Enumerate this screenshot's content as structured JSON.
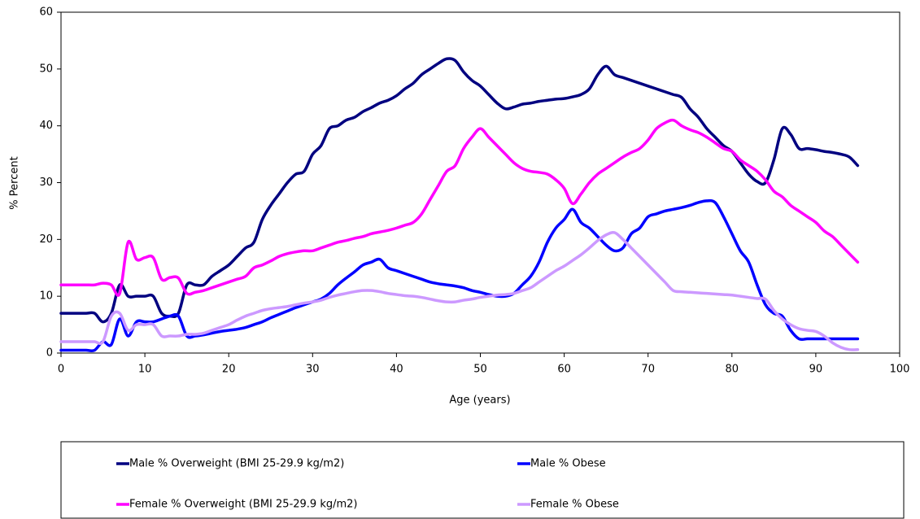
{
  "chart_data": {
    "type": "line",
    "x_label": "Age (years)",
    "y_label": "% Percent",
    "x": [
      0,
      1,
      2,
      3,
      4,
      5,
      6,
      7,
      8,
      9,
      10,
      11,
      12,
      13,
      14,
      15,
      16,
      17,
      18,
      19,
      20,
      21,
      22,
      23,
      24,
      25,
      26,
      27,
      28,
      29,
      30,
      31,
      32,
      33,
      34,
      35,
      36,
      37,
      38,
      39,
      40,
      41,
      42,
      43,
      44,
      45,
      46,
      47,
      48,
      49,
      50,
      51,
      52,
      53,
      54,
      55,
      56,
      57,
      58,
      59,
      60,
      61,
      62,
      63,
      64,
      65,
      66,
      67,
      68,
      69,
      70,
      71,
      72,
      73,
      74,
      75,
      76,
      77,
      78,
      79,
      80,
      81,
      82,
      83,
      84,
      85,
      86,
      87,
      88,
      89,
      90,
      91,
      92,
      93,
      94,
      95
    ],
    "series": [
      {
        "name": "Male % Overweight (BMI 25-29.9 kg/m2)",
        "color": "#000080",
        "values": [
          7,
          7,
          7,
          7,
          7,
          5.5,
          7,
          12,
          10,
          10,
          10,
          10,
          7,
          6.5,
          7,
          12,
          12,
          12,
          13.5,
          14.5,
          15.5,
          17,
          18.5,
          19.5,
          23.5,
          26,
          28,
          30,
          31.5,
          32,
          35,
          36.5,
          39.5,
          40,
          41,
          41.5,
          42.5,
          43.2,
          44,
          44.5,
          45.3,
          46.5,
          47.5,
          49,
          50,
          51,
          51.8,
          51.5,
          49.5,
          48,
          47,
          45.5,
          44,
          43,
          43.3,
          43.8,
          44,
          44.3,
          44.5,
          44.7,
          44.8,
          45.1,
          45.5,
          46.5,
          49,
          50.5,
          49,
          48.5,
          48,
          47.5,
          47,
          46.5,
          46,
          45.5,
          45,
          43,
          41.5,
          39.5,
          38,
          36.5,
          35.5,
          33.5,
          31.5,
          30.2,
          30,
          34,
          39.5,
          38.5,
          36,
          36,
          35.8,
          35.5,
          35.3,
          35,
          34.5,
          33
        ]
      },
      {
        "name": "Male % Obese",
        "color": "#0000ff",
        "values": [
          0.5,
          0.5,
          0.5,
          0.5,
          0.5,
          2,
          1.5,
          6,
          3,
          5.5,
          5.5,
          5.5,
          6,
          6.5,
          6.5,
          3,
          3,
          3.2,
          3.5,
          3.8,
          4,
          4.2,
          4.5,
          5,
          5.5,
          6.2,
          6.8,
          7.4,
          8,
          8.5,
          9,
          9.5,
          10.5,
          12,
          13.2,
          14.3,
          15.5,
          16,
          16.5,
          15,
          14.5,
          14,
          13.5,
          13,
          12.5,
          12.2,
          12,
          11.8,
          11.5,
          11,
          10.7,
          10.3,
          10,
          10,
          10.5,
          12,
          13.5,
          16,
          19.5,
          22,
          23.5,
          25.3,
          23,
          22,
          20.5,
          19,
          18,
          18.5,
          21,
          22,
          24,
          24.5,
          25,
          25.3,
          25.6,
          26,
          26.5,
          26.8,
          26.5,
          24,
          21,
          18,
          16,
          12,
          8.5,
          7,
          6.5,
          4,
          2.5,
          2.5,
          2.5,
          2.5,
          2.5,
          2.5,
          2.5,
          2.5
        ]
      },
      {
        "name": "Female % Overweight (BMI 25-29.9 kg/m2)",
        "color": "#ff00ff",
        "values": [
          12,
          12,
          12,
          12,
          12,
          12.3,
          12,
          10.5,
          19.5,
          16.5,
          16.8,
          16.8,
          13,
          13.3,
          13.2,
          10.5,
          10.7,
          11,
          11.5,
          12,
          12.5,
          13,
          13.5,
          15,
          15.5,
          16.2,
          17,
          17.5,
          17.8,
          18,
          18,
          18.5,
          19,
          19.5,
          19.8,
          20.2,
          20.5,
          21,
          21.3,
          21.6,
          22,
          22.5,
          23,
          24.5,
          27,
          29.5,
          32,
          33,
          36,
          38,
          39.5,
          38,
          36.5,
          35,
          33.5,
          32.5,
          32,
          31.8,
          31.5,
          30.5,
          29,
          26.3,
          28,
          30,
          31.5,
          32.5,
          33.5,
          34.5,
          35.3,
          36,
          37.5,
          39.5,
          40.5,
          41,
          40,
          39.3,
          38.8,
          38,
          37,
          36,
          35.5,
          34,
          33,
          32,
          30.5,
          28.5,
          27.5,
          26,
          25,
          24,
          23,
          21.5,
          20.5,
          19,
          17.5,
          16
        ]
      },
      {
        "name": "Female % Obese",
        "color": "#cc99ff",
        "values": [
          2,
          2,
          2,
          2,
          2,
          2,
          6.5,
          7,
          4,
          5,
          5,
          5,
          3,
          3,
          3,
          3.3,
          3.3,
          3.5,
          4,
          4.5,
          5,
          5.8,
          6.5,
          7,
          7.5,
          7.8,
          8,
          8.2,
          8.5,
          8.8,
          9,
          9.3,
          9.8,
          10.2,
          10.5,
          10.8,
          11,
          11,
          10.8,
          10.5,
          10.3,
          10.1,
          10,
          9.8,
          9.5,
          9.2,
          9,
          9,
          9.3,
          9.5,
          9.8,
          10,
          10.2,
          10.3,
          10.5,
          11,
          11.5,
          12.5,
          13.5,
          14.5,
          15.3,
          16.3,
          17.3,
          18.5,
          19.8,
          20.8,
          21.2,
          20,
          18.5,
          17,
          15.5,
          14,
          12.5,
          11,
          10.8,
          10.7,
          10.6,
          10.5,
          10.4,
          10.3,
          10.2,
          10,
          9.8,
          9.6,
          9.5,
          7.5,
          6,
          5,
          4.3,
          4,
          3.8,
          3,
          1.8,
          1,
          0.6,
          0.6
        ]
      }
    ],
    "xlim": [
      0,
      100
    ],
    "xticks": [
      0,
      10,
      20,
      30,
      40,
      50,
      60,
      70,
      80,
      90,
      100
    ],
    "ylim": [
      0,
      60
    ],
    "yticks": [
      0,
      10,
      20,
      30,
      40,
      50,
      60
    ],
    "grid": false,
    "legend": "bottom"
  }
}
